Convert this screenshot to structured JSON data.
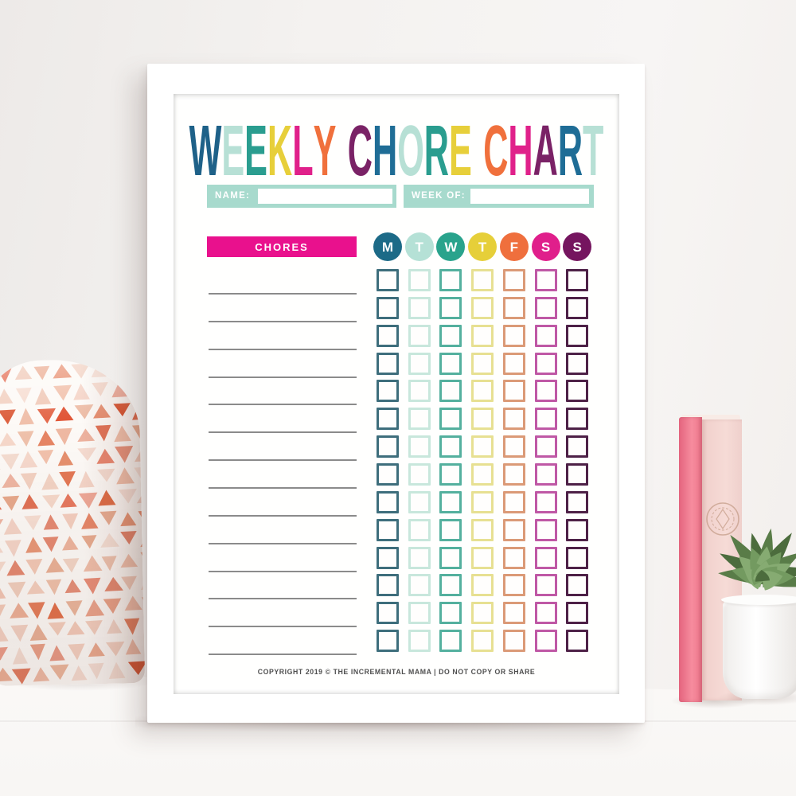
{
  "chart": {
    "title": [
      {
        "ch": "W",
        "color": "#1e6188"
      },
      {
        "ch": "E",
        "color": "#b7e0d5"
      },
      {
        "ch": "E",
        "color": "#2a9d8f"
      },
      {
        "ch": "K",
        "color": "#e7cf3a"
      },
      {
        "ch": "L",
        "color": "#e0218a"
      },
      {
        "ch": "Y",
        "color": "#f0703c"
      },
      {
        "ch": " "
      },
      {
        "ch": "C",
        "color": "#7a2266"
      },
      {
        "ch": "H",
        "color": "#1f6d96"
      },
      {
        "ch": "O",
        "color": "#b7e0d5"
      },
      {
        "ch": "R",
        "color": "#2a9d8f"
      },
      {
        "ch": "E",
        "color": "#e7cf3a"
      },
      {
        "ch": " "
      },
      {
        "ch": "C",
        "color": "#f0703c"
      },
      {
        "ch": "H",
        "color": "#e0218a"
      },
      {
        "ch": "A",
        "color": "#7a2266"
      },
      {
        "ch": "R",
        "color": "#1f6d96"
      },
      {
        "ch": "T",
        "color": "#b7e0d5"
      }
    ],
    "name_label": "NAME:",
    "week_label": "WEEK OF:",
    "name_value": "",
    "week_value": "",
    "chores_label": "CHORES",
    "field_bar_color": "#a7dacd",
    "header_bar_color": "#e9118d",
    "rows": 14,
    "days": [
      {
        "label": "M",
        "circle": "#1c6a87",
        "box": "#3e6e7c"
      },
      {
        "label": "T",
        "circle": "#b5e1d6",
        "box": "#c8e7dc"
      },
      {
        "label": "W",
        "circle": "#29a38c",
        "box": "#54b09e"
      },
      {
        "label": "T",
        "circle": "#e6cf39",
        "box": "#e7e092"
      },
      {
        "label": "F",
        "circle": "#ef6f3d",
        "box": "#db9a77"
      },
      {
        "label": "S",
        "circle": "#e01f8b",
        "box": "#bf58a5"
      },
      {
        "label": "S",
        "circle": "#75155f",
        "box": "#4e2147"
      }
    ],
    "copyright": "COPYRIGHT 2019 © THE INCREMENTAL MAMA | DO NOT COPY OR SHARE"
  },
  "scene": {
    "wall_color": "#f4f2f0",
    "desk_color": "#fbfaf9",
    "frame_color": "#ffffff",
    "pillow": {
      "base": "#fdfaf7",
      "triangle_colors": [
        "#e8a98c",
        "#f0b9a2",
        "#e2704a",
        "#d94f2b",
        "#efc4b2",
        "#e58a66",
        "#df6a43",
        "#f3cdbd",
        "#e05434"
      ]
    },
    "book": {
      "spine_color": "#f27e93",
      "cover_color": "#f4d7d3",
      "emblem_color": "#c9a28f"
    },
    "plant": {
      "pot_color": "#ffffff",
      "leaf_colors": [
        "#739a60",
        "#597c48",
        "#86ab72",
        "#4c6c3d"
      ]
    }
  }
}
